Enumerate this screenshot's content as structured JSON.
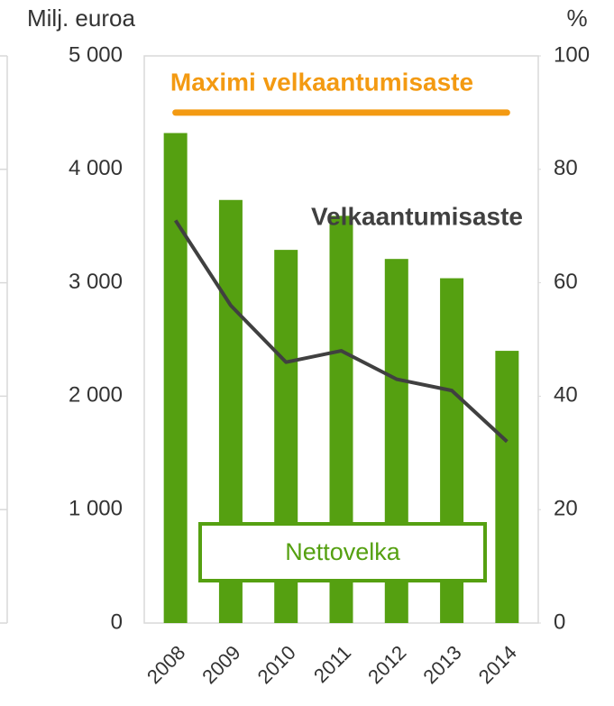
{
  "chart_data": {
    "type": "bar",
    "y_label": "Milj. euroa",
    "y2_label": "%",
    "categories": [
      "2008",
      "2009",
      "2010",
      "2011",
      "2012",
      "2013",
      "2014"
    ],
    "series": [
      {
        "name": "Nettovelka",
        "type": "bar",
        "color": "#55a011",
        "values": [
          4320,
          3730,
          3290,
          3590,
          3210,
          3040,
          2400
        ]
      },
      {
        "name": "Velkaantumisaste",
        "type": "line",
        "axis": "y2",
        "color": "#404040",
        "values": [
          71,
          56,
          46,
          48,
          43,
          41,
          32
        ]
      }
    ],
    "reference_lines": [
      {
        "label": "Maximi velkaantumisaste",
        "value": 90,
        "axis": "y2",
        "color": "#f39a12"
      }
    ],
    "ylim": [
      0,
      5000
    ],
    "yticks": [
      0,
      {
        "value": 1000,
        "label": "1 000"
      },
      {
        "value": 2000,
        "label": "2 000"
      },
      {
        "value": 3000,
        "label": "3 000"
      },
      {
        "value": 4000,
        "label": "4 000"
      },
      {
        "value": 5000,
        "label": "5 000"
      }
    ],
    "y2lim": [
      0,
      100
    ],
    "y2ticks": [
      0,
      20,
      40,
      60,
      80,
      100
    ]
  }
}
